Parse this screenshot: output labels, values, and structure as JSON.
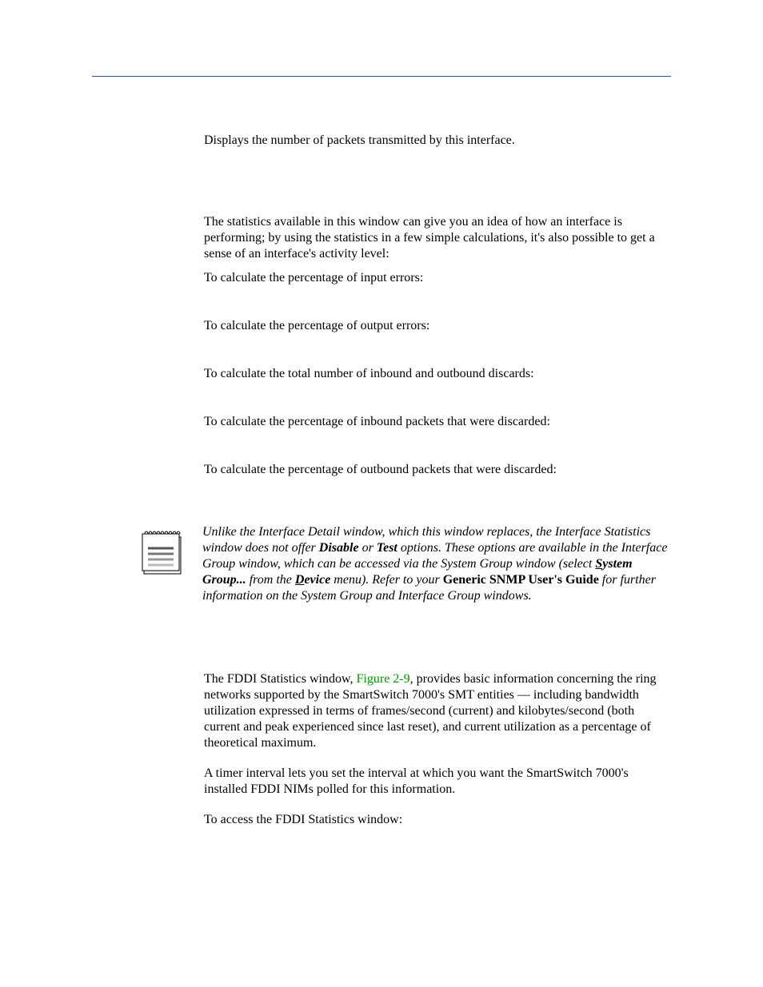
{
  "page": {
    "rule_color": "#3050a0",
    "body_fontsize": 16,
    "body_line_height": 1.25,
    "text_color": "#000000",
    "background_color": "#ffffff",
    "link_color": "#009900"
  },
  "intro": {
    "transmitted": "Displays the number of packets transmitted by this interface."
  },
  "stats": {
    "lead": "The statistics available in this window can give you an idea of how an interface is performing; by using the statistics in a few simple calculations, it's also possible to get a sense of an interface's activity level:",
    "calc_input_errors": "To calculate the percentage of input errors:",
    "calc_output_errors": "To calculate the percentage of output errors:",
    "calc_total_discards": "To calculate the total number of inbound and outbound discards:",
    "calc_inbound_discards": "To calculate the percentage of inbound packets that were discarded:",
    "calc_outbound_discards": "To calculate the percentage of outbound packets that were discarded:"
  },
  "note": {
    "pre1": "Unlike the Interface Detail window, which this window replaces, the Interface Statistics window does not offer ",
    "disable": "Disable",
    "or": " or ",
    "test": "Test",
    "post1": " options. These options are available in the Interface Group window, which can be accessed via the System Group window (select ",
    "sys_first": "S",
    "sys_rest": "ystem Group...",
    "from_the": " from the ",
    "dev_first": "D",
    "dev_rest": "evice",
    "menu_refer": " menu). Refer to your ",
    "guide": "Generic SNMP User's Guide",
    "post2": " for further information on the System Group and Interface Group windows."
  },
  "fddi": {
    "p1_pre": "The FDDI Statistics window, ",
    "figure_ref": "Figure 2-9",
    "p1_post": ", provides basic information concerning the ring networks supported by the SmartSwitch 7000's SMT entities — including bandwidth utilization expressed in terms of frames/second (current) and kilobytes/second (both current and peak experienced since last reset), and current utilization as a percentage of theoretical maximum.",
    "p2": "A timer interval lets you set the interval at which you want the SmartSwitch 7000's installed FDDI NIMs polled for this information.",
    "p3": "To access the FDDI Statistics window:"
  },
  "note_icon": {
    "width": 52,
    "height": 60,
    "cover_fill": "#ffffff",
    "cover_stroke": "#000000",
    "spiral_stroke": "#000000",
    "page_fill": "#f2f2f2",
    "line_colors": [
      "#555555",
      "#777777",
      "#999999",
      "#bbbbbb"
    ]
  }
}
